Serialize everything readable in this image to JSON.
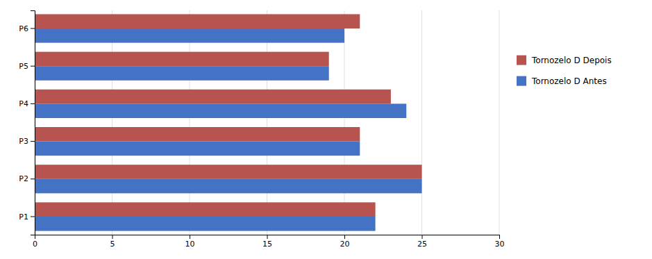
{
  "chart_data": {
    "type": "bar",
    "orientation": "horizontal",
    "categories": [
      "P1",
      "P2",
      "P3",
      "P4",
      "P5",
      "P6"
    ],
    "series": [
      {
        "name": "Tornozelo D Depois",
        "color": "#B85450",
        "values": [
          22.0,
          25.0,
          21.0,
          23.0,
          19.0,
          21.0
        ]
      },
      {
        "name": "Tornozelo D Antes",
        "color": "#4472C4",
        "values": [
          22.0,
          25.0,
          21.0,
          24.0,
          19.0,
          20.0
        ]
      }
    ],
    "xlim": [
      0,
      30
    ],
    "xticks": [
      0,
      5,
      10,
      15,
      20,
      25,
      30
    ],
    "grid": true,
    "legend": "right"
  }
}
